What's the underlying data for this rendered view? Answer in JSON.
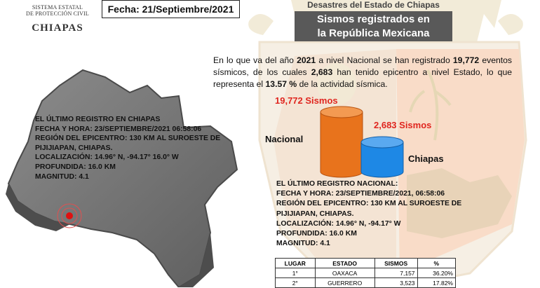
{
  "header": {
    "org_line1": "SISTEMA ESTATAL",
    "org_line2": "DE PROTECCIÓN CIVIL",
    "state": "CHIAPAS",
    "date_label": "Fecha:  21/Septiembre/2021",
    "banner_sub": "Desastres del Estado de Chiapas",
    "title_line1": "Sismos registrados en",
    "title_line2": "la República  Mexicana"
  },
  "intro": {
    "p1": "En lo que va del año ",
    "year": "2021",
    "p2": " a nivel Nacional se han registrado ",
    "nat_count": "19,772",
    "p3": " eventos sísmicos, de los cuales ",
    "chi_count": "2,683",
    "p4": " han tenido epicentro a nivel Estado, lo que representa el ",
    "percent": "13.57 %",
    "p5": " de la actividad sísmica."
  },
  "chiapas_record": {
    "l1": "EL ÚLTIMO REGISTRO EN CHIAPAS",
    "l2": "FECHA Y HORA: 23/SEPTIEMBRE/2021  06:58:06",
    "l3": " REGIÓN DEL EPICENTRO:  130 KM AL SUROESTE DE",
    "l4": "PIJIJIAPAN, CHIAPAS.",
    "l5": "LOCALIZACIÓN: 14.96° N,  -94.17° 16.0° W",
    "l6": "PROFUNDIDA: 16.0 KM",
    "l7": "MAGNITUD: 4.1"
  },
  "chart_data": {
    "type": "bar",
    "categories": [
      "Nacional",
      "Chiapas"
    ],
    "values": [
      19772,
      2683
    ],
    "value_labels": [
      "19,772 Sismos",
      "2,683 Sismos"
    ],
    "colors": [
      "#e8731c",
      "#1e88e5"
    ]
  },
  "national_record": {
    "l1": "EL ÚLTIMO REGISTRO NACIONAL:",
    "l2": "FECHA Y HORA: 23/SEPTIEMBRE/2021,  06:58:06",
    "l3": " REGIÓN DEL EPICENTRO: 130 KM AL SUROESTE DE",
    "l4": "PIJIJIAPAN, CHIAPAS.",
    "l5": "LOCALIZACIÓN:  14.96° N,  -94.17° W",
    "l6": "PROFUNDIDA:  16.0  KM",
    "l7": "MAGNITUD: 4.1"
  },
  "table": {
    "headers": [
      "LUGAR",
      "ESTADO",
      "SISMOS",
      "%"
    ],
    "rows": [
      [
        "1°",
        "OAXACA",
        "7,157",
        "36.20%"
      ],
      [
        "2°",
        "GUERRERO",
        "3,523",
        "17.82%"
      ]
    ]
  }
}
